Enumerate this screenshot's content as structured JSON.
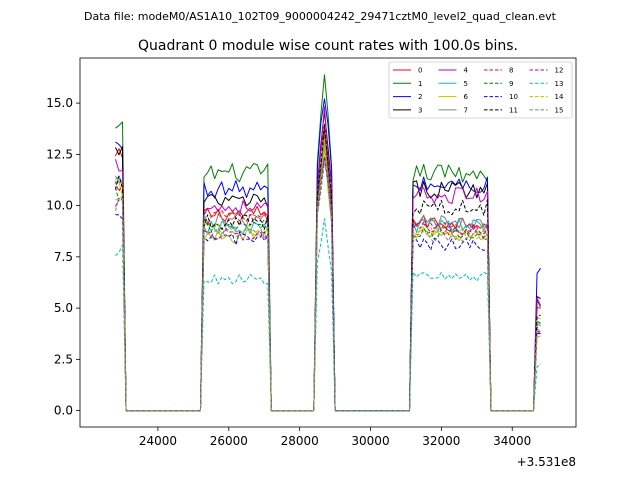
{
  "chart_data": {
    "type": "line",
    "suptitle": "Data file: modeM0/AS1A10_102T09_9000004242_29471cztM0_level2_quad_clean.evt",
    "title": "Quadrant 0 module wise count rates with 100.0s bins.",
    "xlabel": "",
    "ylabel": "",
    "offset_label": "+3.531e8",
    "xlim": [
      21800,
      35800
    ],
    "ylim": [
      -0.8,
      17.2
    ],
    "x_ticks": [
      24000,
      26000,
      28000,
      30000,
      32000,
      34000
    ],
    "x_tick_labels": [
      "24000",
      "26000",
      "28000",
      "30000",
      "32000",
      "34000"
    ],
    "y_ticks": [
      0,
      2.5,
      5,
      7.5,
      10,
      12.5,
      15
    ],
    "y_tick_labels": [
      "0.0",
      "2.5",
      "5.0",
      "7.5",
      "10.0",
      "12.5",
      "15.0"
    ],
    "legend_position": "top-right",
    "segments": [
      {
        "start": 22800,
        "end": 23000
      },
      {
        "start": 25300,
        "end": 27100
      },
      {
        "start": 28500,
        "end": 28900
      },
      {
        "start": 31200,
        "end": 33300
      },
      {
        "start": 34700,
        "end": 34800
      }
    ],
    "series": [
      {
        "name": "0",
        "color": "#ff0000",
        "dash": "solid",
        "seg_levels": [
          12.3,
          9.6,
          14.0,
          9.2,
          5.0
        ]
      },
      {
        "name": "1",
        "color": "#008000",
        "dash": "solid",
        "seg_levels": [
          13.6,
          11.6,
          16.0,
          11.6,
          5.2
        ]
      },
      {
        "name": "2",
        "color": "#0000ff",
        "dash": "solid",
        "seg_levels": [
          12.9,
          10.8,
          15.6,
          11.0,
          6.8
        ]
      },
      {
        "name": "3",
        "color": "#000000",
        "dash": "solid",
        "seg_levels": [
          12.6,
          10.2,
          14.5,
          10.8,
          5.5
        ]
      },
      {
        "name": "4",
        "color": "#bf00bf",
        "dash": "solid",
        "seg_levels": [
          12.0,
          9.9,
          14.3,
          10.5,
          5.3
        ]
      },
      {
        "name": "5",
        "color": "#00bfbf",
        "dash": "solid",
        "seg_levels": [
          11.0,
          8.9,
          13.0,
          9.0,
          4.2
        ]
      },
      {
        "name": "6",
        "color": "#bfbf00",
        "dash": "solid",
        "seg_levels": [
          10.9,
          8.5,
          12.6,
          8.6,
          4.5
        ]
      },
      {
        "name": "7",
        "color": "#808080",
        "dash": "solid",
        "seg_levels": [
          11.1,
          9.3,
          13.5,
          9.2,
          4.0
        ]
      },
      {
        "name": "8",
        "color": "#ff0000",
        "dash": "dashed",
        "seg_levels": [
          10.8,
          9.4,
          13.5,
          8.9,
          4.1
        ]
      },
      {
        "name": "9",
        "color": "#008000",
        "dash": "dashed",
        "seg_levels": [
          10.5,
          9.0,
          13.3,
          8.6,
          4.3
        ]
      },
      {
        "name": "10",
        "color": "#0000ff",
        "dash": "dashed",
        "seg_levels": [
          9.2,
          8.4,
          12.6,
          8.1,
          3.9
        ]
      },
      {
        "name": "11",
        "color": "#000000",
        "dash": "dashed",
        "seg_levels": [
          11.2,
          9.2,
          13.8,
          9.9,
          4.6
        ]
      },
      {
        "name": "12",
        "color": "#bf00bf",
        "dash": "dashed",
        "seg_levels": [
          10.3,
          8.6,
          12.8,
          8.8,
          3.8
        ]
      },
      {
        "name": "13",
        "color": "#00bfbf",
        "dash": "dashed",
        "seg_levels": [
          7.8,
          6.4,
          9.4,
          6.5,
          2.2
        ]
      },
      {
        "name": "14",
        "color": "#bfbf00",
        "dash": "dashed",
        "seg_levels": [
          10.6,
          8.8,
          12.9,
          8.7,
          3.6
        ]
      },
      {
        "name": "15",
        "color": "#808080",
        "dash": "dashed",
        "seg_levels": [
          10.0,
          8.7,
          12.4,
          8.5,
          3.9
        ]
      }
    ]
  }
}
